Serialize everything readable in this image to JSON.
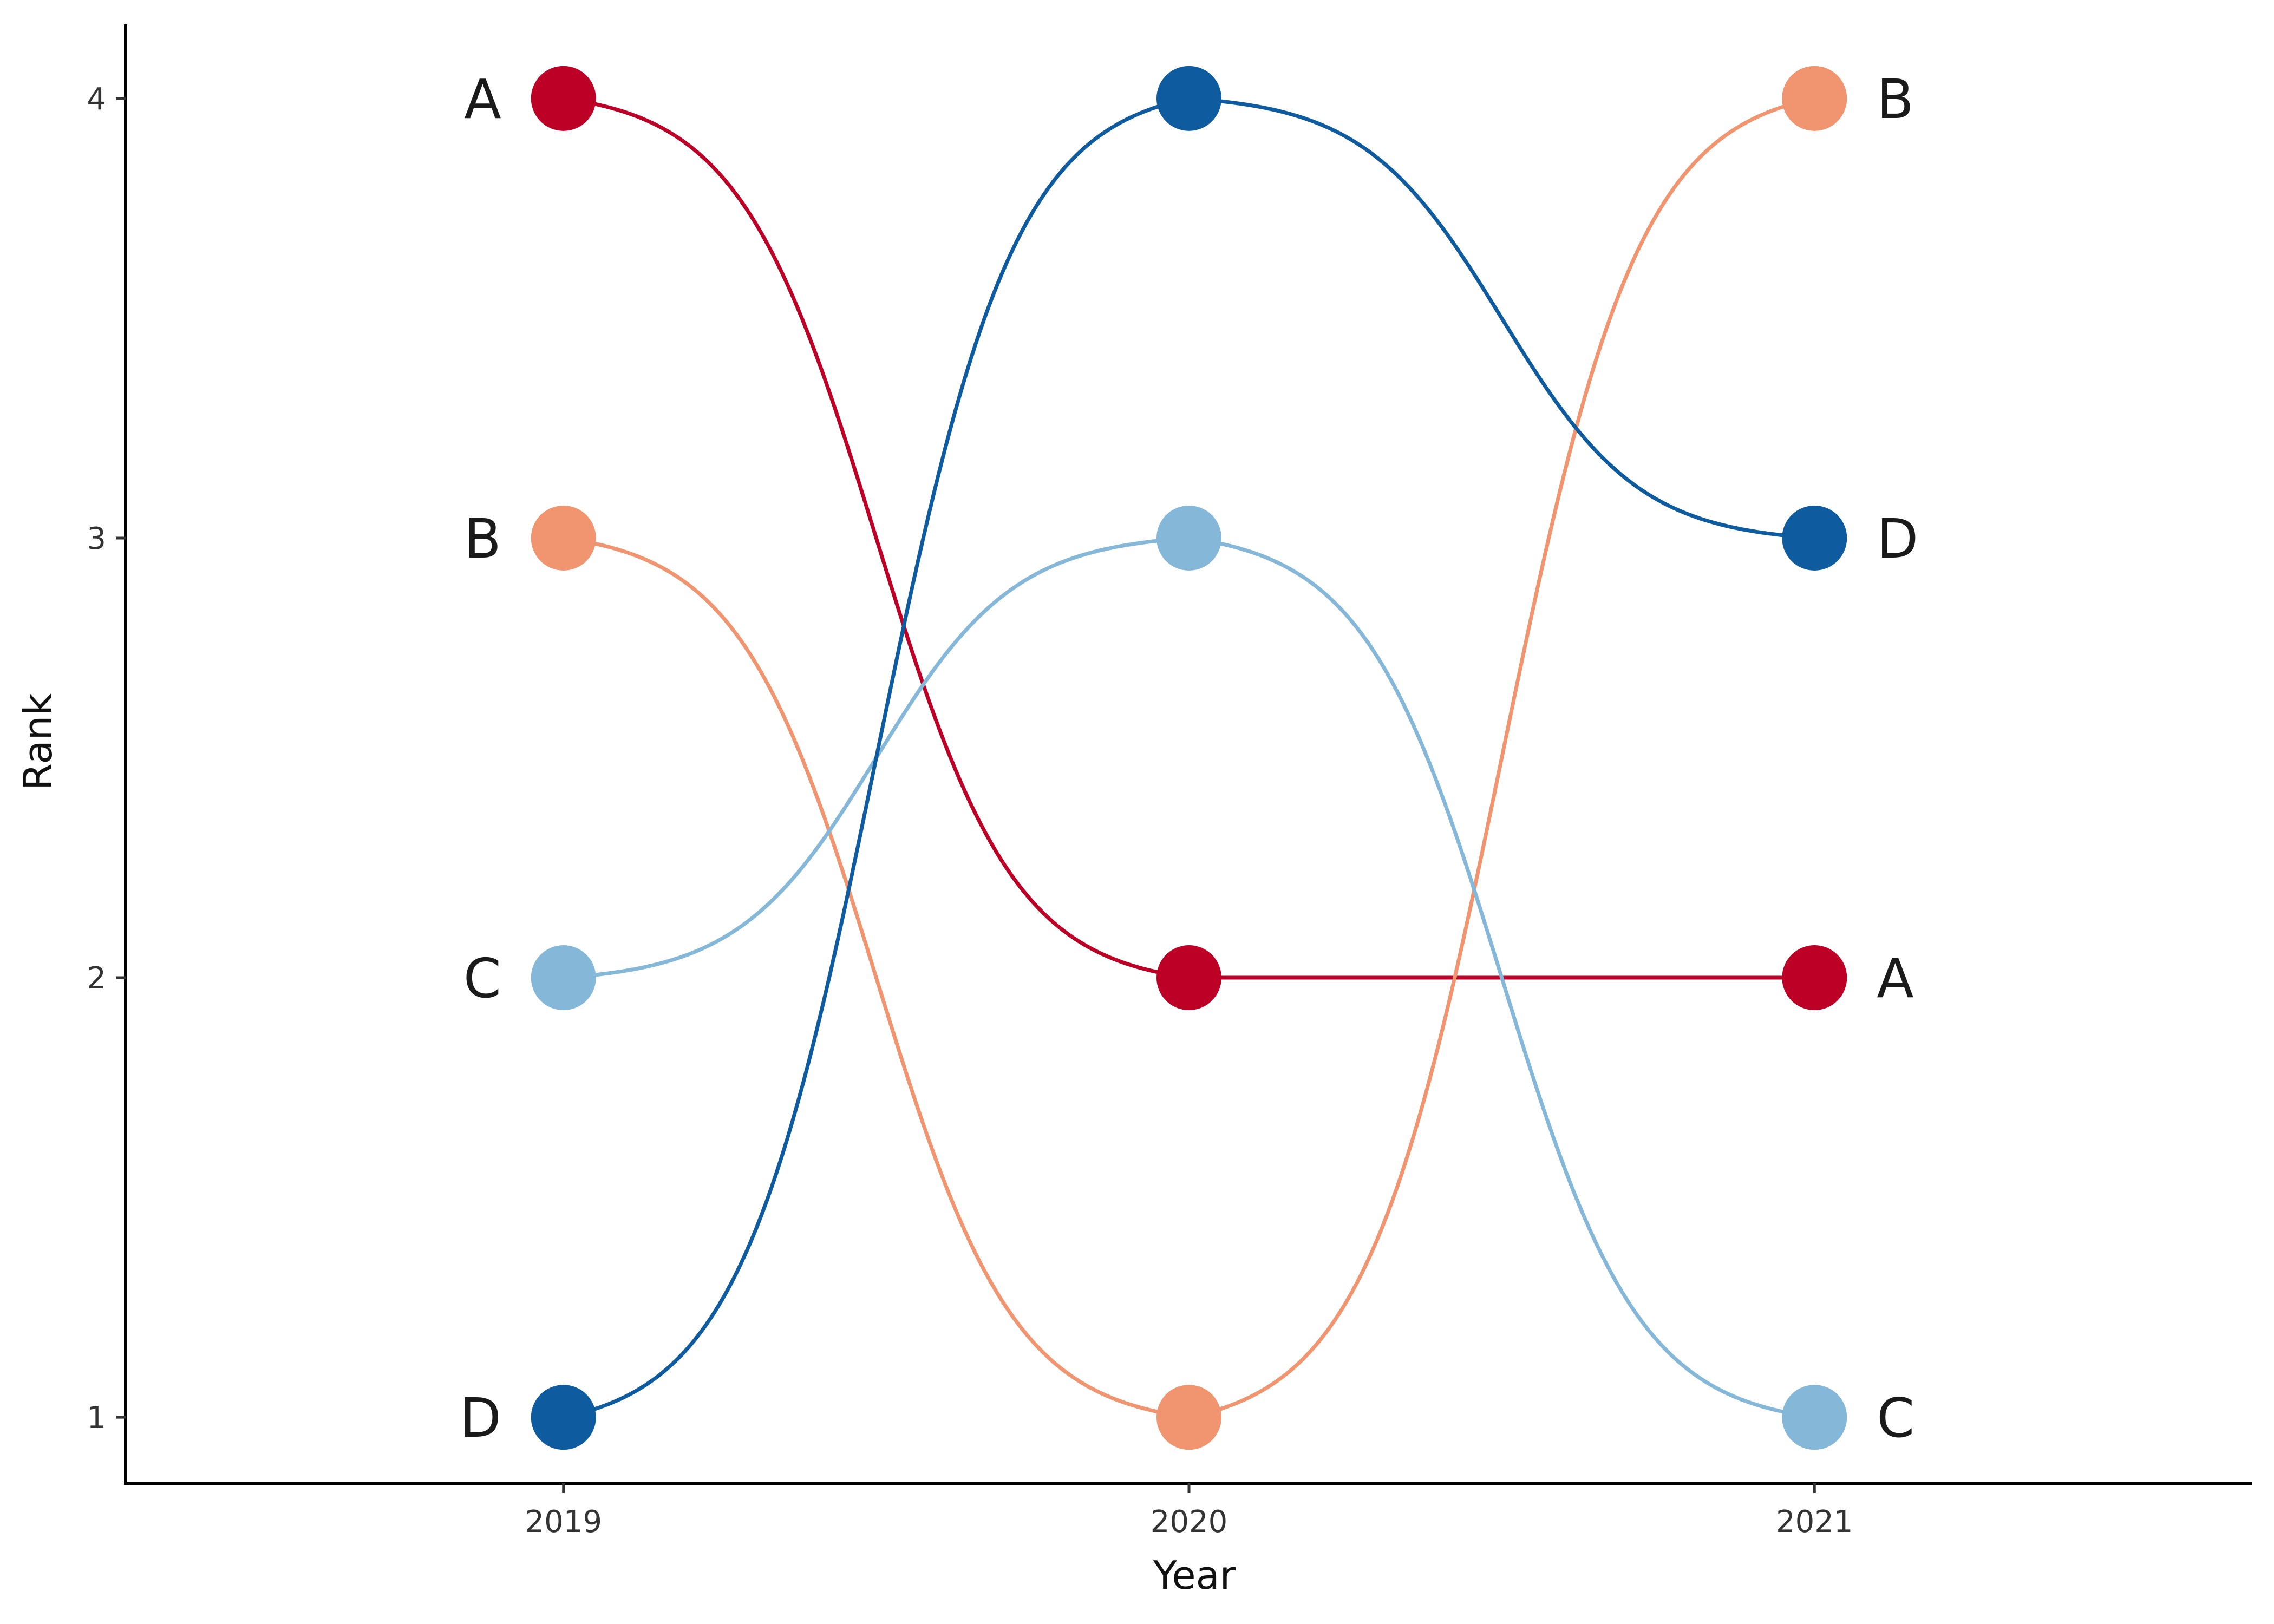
{
  "chart_data": {
    "type": "line",
    "subtype": "bump",
    "title": "",
    "xlabel": "Year",
    "ylabel": "Rank",
    "x": [
      2019,
      2020,
      2021
    ],
    "xlim": [
      2018.3,
      2021.7
    ],
    "ylim": [
      0.85,
      4.15
    ],
    "yticks": [
      1,
      2,
      3,
      4
    ],
    "grid": false,
    "legend": "none",
    "series": [
      {
        "name": "A",
        "values": [
          4,
          2,
          2
        ],
        "color": "#BD0026"
      },
      {
        "name": "B",
        "values": [
          3,
          1,
          4
        ],
        "color": "#F0956F"
      },
      {
        "name": "C",
        "values": [
          2,
          3,
          1
        ],
        "color": "#85B8D8"
      },
      {
        "name": "D",
        "values": [
          1,
          4,
          3
        ],
        "color": "#0F5BA0"
      }
    ]
  }
}
